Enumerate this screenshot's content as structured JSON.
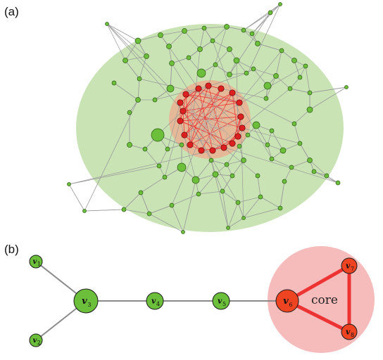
{
  "panels": {
    "a": {
      "label": "(a)"
    },
    "b": {
      "label": "(b)",
      "core_label": "core"
    }
  },
  "colors": {
    "periphery_fill": "#c9e3b5",
    "core_fill": "#f4b0b0",
    "green_node": "#6bbf3a",
    "red_node": "#dd1f1f",
    "orange_node": "#ee4422",
    "gray_edge": "#9a9a9a",
    "red_edge": "#ee3333"
  },
  "chain": {
    "vertices": [
      {
        "id": "v1",
        "letter": "v",
        "sub": "1",
        "type": "periphery"
      },
      {
        "id": "v2",
        "letter": "v",
        "sub": "2",
        "type": "periphery"
      },
      {
        "id": "v3",
        "letter": "v",
        "sub": "3",
        "type": "periphery"
      },
      {
        "id": "v4",
        "letter": "v",
        "sub": "4",
        "type": "periphery"
      },
      {
        "id": "v5",
        "letter": "v",
        "sub": "5",
        "type": "periphery"
      },
      {
        "id": "v6",
        "letter": "v",
        "sub": "6",
        "type": "core"
      },
      {
        "id": "v7",
        "letter": "v",
        "sub": "7",
        "type": "core"
      },
      {
        "id": "v8",
        "letter": "v",
        "sub": "8",
        "type": "core"
      }
    ],
    "edges": [
      [
        "v1",
        "v3"
      ],
      [
        "v2",
        "v3"
      ],
      [
        "v3",
        "v4"
      ],
      [
        "v4",
        "v5"
      ],
      [
        "v5",
        "v6"
      ],
      [
        "v6",
        "v7"
      ],
      [
        "v6",
        "v8"
      ],
      [
        "v7",
        "v8"
      ]
    ]
  }
}
